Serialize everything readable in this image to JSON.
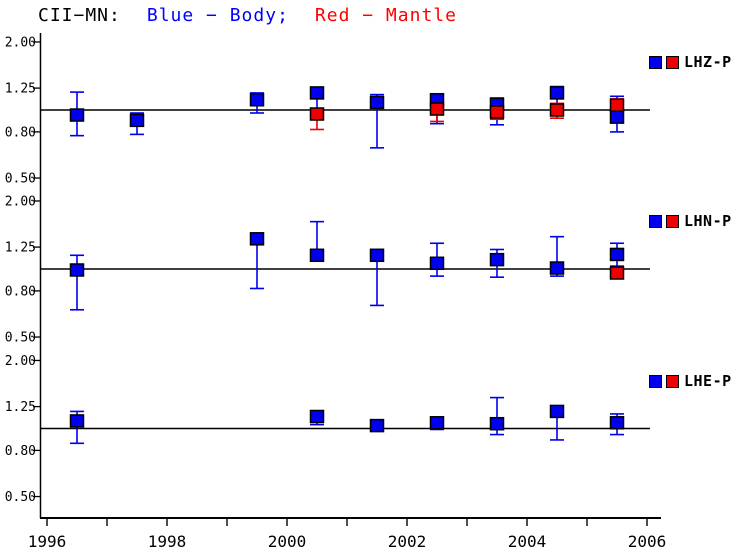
{
  "title": {
    "station": "CII−MN:",
    "body_legend": "Blue − Body;",
    "mantle_legend": "Red − Mantle"
  },
  "colors": {
    "body": "#0000ee",
    "mantle": "#ee0000",
    "title_station": "#000000",
    "title_body": "#0000ff",
    "title_mantle": "#ff0000",
    "axis": "#000000"
  },
  "chart_data": {
    "type": "scatter",
    "title": "CII−MN: Blue − Body; Red − Mantle",
    "series_names": [
      "Body",
      "Mantle"
    ],
    "legend_position": "right",
    "grid": false,
    "x_axis": {
      "range": [
        1996,
        2006
      ],
      "major_ticks": [
        1996,
        1998,
        2000,
        2002,
        2004,
        2006
      ],
      "major_tick_labels": [
        "1996",
        "1998",
        "2000",
        "2002",
        "2004",
        "2006"
      ],
      "minor_ticks": [
        1997,
        1999,
        2001,
        2003,
        2005
      ]
    },
    "y_axis": {
      "scale": "log",
      "ticks": [
        2.0,
        1.25,
        0.8,
        0.5
      ],
      "tick_labels": [
        "2.00",
        "1.25",
        "0.80",
        "0.50"
      ],
      "range": [
        0.5,
        2.0
      ],
      "reference_line": 1.0
    },
    "subplots": [
      {
        "label": "LHZ-P",
        "points": [
          {
            "x": 1996.5,
            "body": {
              "v": 0.95,
              "lo": 0.77,
              "hi": 1.2
            }
          },
          {
            "x": 1997.5,
            "body": {
              "v": 0.9,
              "lo": 0.78,
              "hi": 0.97
            }
          },
          {
            "x": 1999.5,
            "body": {
              "v": 1.11,
              "lo": 0.97,
              "hi": 1.19
            }
          },
          {
            "x": 2000.5,
            "body": {
              "v": 1.19,
              "lo": 0.93,
              "hi": 1.24
            },
            "mantle": {
              "v": 0.96,
              "lo": 0.82,
              "hi": 1.0
            }
          },
          {
            "x": 2001.5,
            "body": {
              "v": 1.08,
              "lo": 0.68,
              "hi": 1.17
            }
          },
          {
            "x": 2002.5,
            "body": {
              "v": 1.11,
              "lo": 0.87,
              "hi": 1.18
            },
            "mantle": {
              "v": 1.01,
              "lo": 0.89,
              "hi": 1.05
            }
          },
          {
            "x": 2003.5,
            "body": {
              "v": 1.06,
              "lo": 0.86,
              "hi": 1.13
            },
            "mantle": {
              "v": 0.98,
              "lo": 0.91,
              "hi": 1.03
            }
          },
          {
            "x": 2004.5,
            "body": {
              "v": 1.19,
              "lo": 1.0,
              "hi": 1.27
            },
            "mantle": {
              "v": 1.0,
              "lo": 0.92,
              "hi": 1.07
            }
          },
          {
            "x": 2005.5,
            "body": {
              "v": 0.93,
              "lo": 0.8,
              "hi": 1.15
            },
            "mantle": {
              "v": 1.05,
              "lo": 0.98,
              "hi": 1.12
            }
          }
        ]
      },
      {
        "label": "LHN-P",
        "points": [
          {
            "x": 1996.5,
            "body": {
              "v": 0.99,
              "lo": 0.66,
              "hi": 1.15
            }
          },
          {
            "x": 1999.5,
            "body": {
              "v": 1.36,
              "lo": 0.82,
              "hi": 1.44
            }
          },
          {
            "x": 2000.5,
            "body": {
              "v": 1.15,
              "lo": 1.12,
              "hi": 1.62
            }
          },
          {
            "x": 2001.5,
            "body": {
              "v": 1.15,
              "lo": 0.69,
              "hi": 1.21
            }
          },
          {
            "x": 2002.5,
            "body": {
              "v": 1.06,
              "lo": 0.93,
              "hi": 1.3
            }
          },
          {
            "x": 2003.5,
            "body": {
              "v": 1.1,
              "lo": 0.92,
              "hi": 1.22
            }
          },
          {
            "x": 2004.5,
            "body": {
              "v": 1.01,
              "lo": 0.93,
              "hi": 1.39
            }
          },
          {
            "x": 2005.5,
            "body": {
              "v": 1.16,
              "lo": 1.03,
              "hi": 1.3
            },
            "mantle": {
              "v": 0.96,
              "lo": 0.93,
              "hi": 1.0
            }
          }
        ]
      },
      {
        "label": "LHE-P",
        "points": [
          {
            "x": 1996.5,
            "body": {
              "v": 1.08,
              "lo": 0.86,
              "hi": 1.19
            }
          },
          {
            "x": 2000.5,
            "body": {
              "v": 1.13,
              "lo": 1.04,
              "hi": 1.17
            }
          },
          {
            "x": 2001.5,
            "body": {
              "v": 1.03,
              "lo": 0.98,
              "hi": 1.08
            }
          },
          {
            "x": 2002.5,
            "body": {
              "v": 1.06,
              "lo": 0.99,
              "hi": 1.1
            }
          },
          {
            "x": 2003.5,
            "body": {
              "v": 1.05,
              "lo": 0.94,
              "hi": 1.37
            }
          },
          {
            "x": 2004.5,
            "body": {
              "v": 1.19,
              "lo": 0.89,
              "hi": 1.22
            }
          },
          {
            "x": 2005.5,
            "body": {
              "v": 1.06,
              "lo": 0.94,
              "hi": 1.16
            }
          }
        ]
      }
    ]
  }
}
